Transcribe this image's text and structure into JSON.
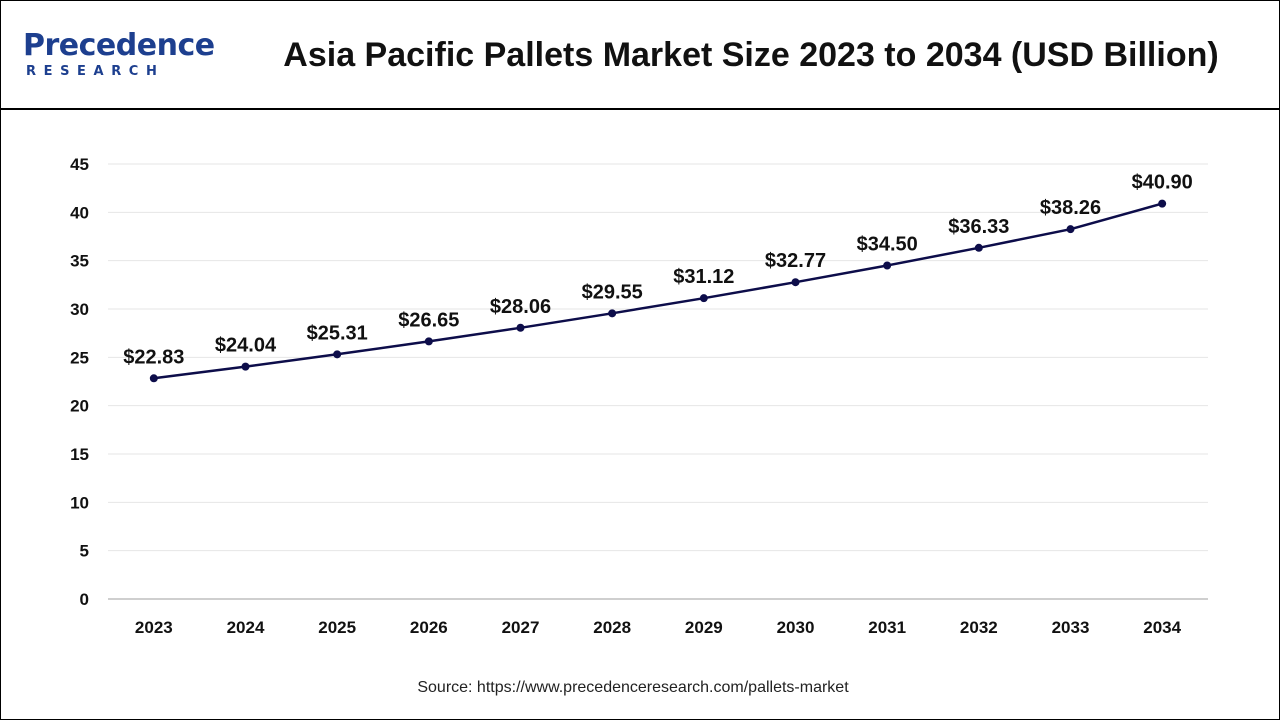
{
  "header": {
    "logo_main": "Precedence",
    "logo_sub": "RESEARCH",
    "title": "Asia Pacific Pallets Market Size 2023 to 2034 (USD Billion)"
  },
  "source": "Source: https://www.precedenceresearch.com/pallets-market",
  "colors": {
    "line": "#0d0d4a",
    "grid": "#e6e6e6",
    "brand": "#1d3f8f"
  },
  "chart_data": {
    "type": "line",
    "title": "Asia Pacific Pallets Market Size 2023 to 2034 (USD Billion)",
    "xlabel": "",
    "ylabel": "",
    "categories": [
      "2023",
      "2024",
      "2025",
      "2026",
      "2027",
      "2028",
      "2029",
      "2030",
      "2031",
      "2032",
      "2033",
      "2034"
    ],
    "values": [
      22.83,
      24.04,
      25.31,
      26.65,
      28.06,
      29.55,
      31.12,
      32.77,
      34.5,
      36.33,
      38.26,
      40.9
    ],
    "data_labels": [
      "$22.83",
      "$24.04",
      "$25.31",
      "$26.65",
      "$28.06",
      "$29.55",
      "$31.12",
      "$32.77",
      "$34.50",
      "$36.33",
      "$38.26",
      "$40.90"
    ],
    "ylim": [
      0,
      45
    ],
    "yticks": [
      0,
      5,
      10,
      15,
      20,
      25,
      30,
      35,
      40,
      45
    ],
    "grid": true,
    "legend": "none"
  }
}
